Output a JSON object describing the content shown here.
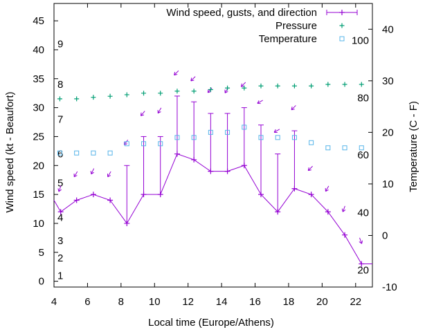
{
  "chart_data": {
    "type": "line",
    "title": "",
    "xlabel": "Local time (Europe/Athens)",
    "ylabel": "Wind speed (kt - Beaufort)",
    "y2label": "Temperature (C - F)",
    "xlim": [
      4,
      23
    ],
    "ylim": [
      -1,
      48
    ],
    "y2lim": [
      -10,
      45
    ],
    "x_ticks": [
      4,
      6,
      8,
      10,
      12,
      14,
      16,
      18,
      20,
      22
    ],
    "y_ticks": [
      0,
      5,
      10,
      15,
      20,
      25,
      30,
      35,
      40,
      45
    ],
    "y2_ticks": [
      -10,
      0,
      10,
      20,
      30,
      40
    ],
    "grid": false,
    "legend_position": "top-right",
    "legend": [
      {
        "label": "Wind speed, gusts, and direction",
        "color": "#9400d3",
        "symbol": "line-plus"
      },
      {
        "label": "Pressure",
        "color": "#009e73",
        "symbol": "plus"
      },
      {
        "label": "Temperature",
        "color": "#56b4e9",
        "symbol": "square"
      }
    ],
    "beaufort_labels": [
      {
        "text": "1",
        "y": 1
      },
      {
        "text": "2",
        "y": 4
      },
      {
        "text": "3",
        "y": 7
      },
      {
        "text": "4",
        "y": 11
      },
      {
        "text": "5",
        "y": 17
      },
      {
        "text": "6",
        "y": 22
      },
      {
        "text": "7",
        "y": 28
      },
      {
        "text": "8",
        "y": 34
      },
      {
        "text": "9",
        "y": 41
      }
    ],
    "fahrenheit_labels": [
      {
        "text": "20",
        "c": -6.7
      },
      {
        "text": "40",
        "c": 4.4
      },
      {
        "text": "60",
        "c": 15.6
      },
      {
        "text": "80",
        "c": 26.7
      },
      {
        "text": "100",
        "c": 37.8
      }
    ],
    "wind": {
      "name": "Wind speed, gusts, and direction",
      "color": "#9400d3",
      "x": [
        3.6,
        4.4,
        5.35,
        6.35,
        7.35,
        8.35,
        9.35,
        10.35,
        11.35,
        12.35,
        13.35,
        14.35,
        15.35,
        16.35,
        17.35,
        18.35,
        19.35,
        20.35,
        21.35,
        22.35,
        23
      ],
      "speed": [
        14,
        12,
        14,
        15,
        14,
        10,
        15,
        15,
        22,
        21,
        19,
        19,
        20,
        15,
        12,
        16,
        15,
        12,
        8,
        3,
        3
      ],
      "gust": [
        null,
        12,
        14,
        15,
        14,
        20,
        25,
        25,
        32,
        31,
        29,
        29,
        30,
        27,
        22,
        26,
        15,
        12,
        8,
        3,
        null
      ],
      "direction_x": [
        4.35,
        5.3,
        6.3,
        7.3,
        8.3,
        9.3,
        10.3,
        11.3,
        12.3,
        13.3,
        14.3,
        15.3,
        16.3,
        17.3,
        18.3,
        19.3,
        20.3,
        21.3,
        22.3
      ],
      "direction_y": [
        16,
        18.5,
        19,
        18.5,
        24,
        29,
        29.5,
        36,
        35,
        33,
        33,
        34,
        31,
        26,
        30,
        19.5,
        16,
        12.5,
        7
      ],
      "direction_deg": [
        20,
        30,
        25,
        30,
        35,
        40,
        30,
        45,
        45,
        40,
        30,
        45,
        60,
        60,
        45,
        45,
        30,
        20,
        340
      ]
    },
    "pressure": {
      "name": "Pressure",
      "color": "#009e73",
      "x": [
        4.35,
        5.35,
        6.35,
        7.35,
        8.35,
        9.35,
        10.35,
        11.35,
        12.35,
        13.35,
        14.35,
        15.35,
        16.35,
        17.35,
        18.35,
        19.35,
        20.35,
        21.35,
        22.35
      ],
      "y2": [
        26.5,
        26.5,
        26.8,
        27,
        27.3,
        27.6,
        27.6,
        28,
        28,
        28.3,
        28.6,
        28.6,
        29,
        29,
        29,
        29,
        29.3,
        29.3,
        29.3
      ]
    },
    "temperature": {
      "name": "Temperature",
      "color": "#56b4e9",
      "x": [
        4.35,
        5.35,
        6.35,
        7.35,
        8.35,
        9.35,
        10.35,
        11.35,
        12.35,
        13.35,
        14.35,
        15.35,
        16.35,
        17.35,
        18.35,
        19.35,
        20.35,
        21.35,
        22.35
      ],
      "y2": [
        16,
        16,
        16,
        16,
        17.8,
        17.8,
        17.8,
        19,
        19,
        20,
        20,
        21,
        19,
        19,
        19,
        18,
        17,
        17,
        17
      ]
    }
  }
}
